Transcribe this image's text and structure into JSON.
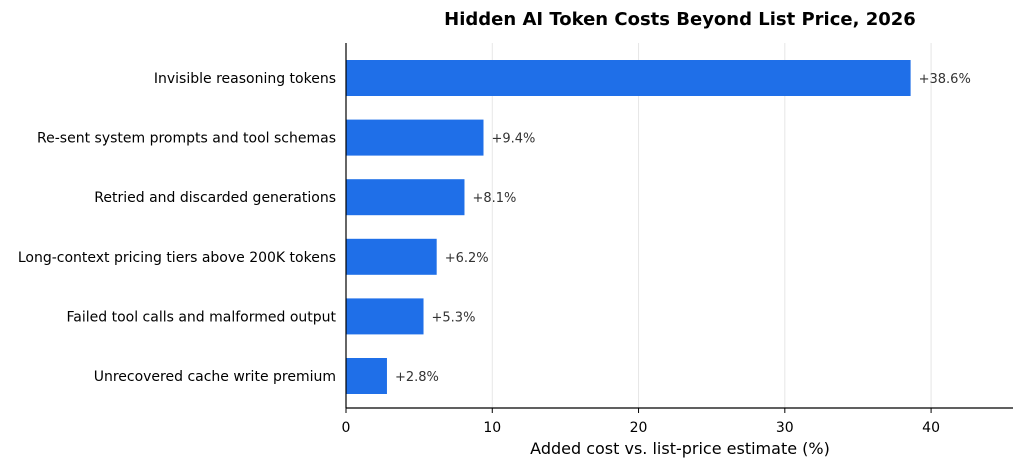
{
  "chart_data": {
    "type": "bar",
    "orientation": "horizontal",
    "title": "Hidden AI Token Costs Beyond List Price, 2026",
    "xlabel": "Added cost vs. list-price estimate (%)",
    "ylabel": "",
    "categories": [
      "Invisible reasoning tokens",
      "Re-sent system prompts and tool schemas",
      "Retried and discarded generations",
      "Long-context pricing tiers above 200K tokens",
      "Failed tool calls and malformed output",
      "Unrecovered cache write premium"
    ],
    "values": [
      38.6,
      9.4,
      8.1,
      6.2,
      5.3,
      2.8
    ],
    "data_labels": [
      "+38.6%",
      "+9.4%",
      "+8.1%",
      "+6.2%",
      "+5.3%",
      "+2.8%"
    ],
    "xlim": [
      0,
      45.6
    ],
    "xticks": [
      0,
      10,
      20,
      30,
      40
    ],
    "grid": "vertical",
    "bar_color": "#1f6fe8",
    "grid_color": "#e6e6e6",
    "legend": "none"
  }
}
